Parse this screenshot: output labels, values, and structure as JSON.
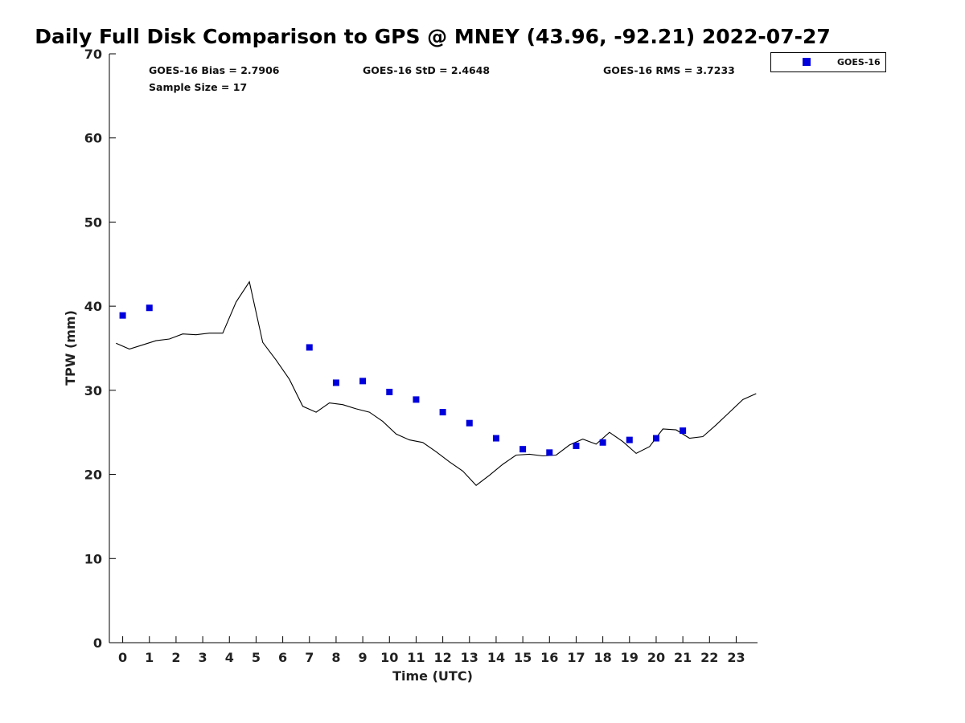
{
  "chart_data": {
    "type": "scatter",
    "title": "Daily Full Disk Comparison to GPS @ MNEY (43.96, -92.21) 2022-07-27",
    "xlabel": "Time (UTC)",
    "ylabel": "TPW (mm)",
    "xlim": [
      -0.5,
      23.8
    ],
    "ylim": [
      0,
      70
    ],
    "xticks": [
      0,
      1,
      2,
      3,
      4,
      5,
      6,
      7,
      8,
      9,
      10,
      11,
      12,
      13,
      14,
      15,
      16,
      17,
      18,
      19,
      20,
      21,
      22,
      23
    ],
    "yticks": [
      0,
      10,
      20,
      30,
      40,
      50,
      60,
      70
    ],
    "xtick_labels": [
      "0",
      "1",
      "2",
      "3",
      "4",
      "5",
      "6",
      "7",
      "8",
      "9",
      "10",
      "11",
      "12",
      "13",
      "14",
      "15",
      "16",
      "17",
      "18",
      "19",
      "20",
      "21",
      "22",
      "23"
    ],
    "ytick_labels": [
      "0",
      "10",
      "20",
      "30",
      "40",
      "50",
      "60",
      "70"
    ],
    "grid": false,
    "legend_position": "outside-top-right",
    "stats": [
      "GOES-16 Bias = 2.7906",
      "GOES-16 StD = 2.4648",
      "GOES-16 RMS = 3.7233",
      "Sample Size = 17"
    ],
    "series": [
      {
        "name": "GOES-16",
        "kind": "scatter",
        "marker": "square",
        "color": "#0000dd",
        "points": [
          [
            0,
            38.9
          ],
          [
            1,
            39.8
          ],
          [
            7,
            35.1
          ],
          [
            8,
            30.9
          ],
          [
            9,
            31.1
          ],
          [
            10,
            29.8
          ],
          [
            11,
            28.9
          ],
          [
            12,
            27.4
          ],
          [
            13,
            26.1
          ],
          [
            14,
            24.3
          ],
          [
            15,
            23.0
          ],
          [
            16,
            22.6
          ],
          [
            17,
            23.4
          ],
          [
            18,
            23.8
          ],
          [
            19,
            24.1
          ],
          [
            20,
            24.3
          ],
          [
            21,
            25.2
          ]
        ]
      },
      {
        "kind": "line",
        "color": "#000000",
        "points": [
          [
            -0.25,
            35.6
          ],
          [
            0.25,
            34.9
          ],
          [
            0.75,
            35.4
          ],
          [
            1.25,
            35.9
          ],
          [
            1.75,
            36.1
          ],
          [
            2.25,
            36.7
          ],
          [
            2.75,
            36.6
          ],
          [
            3.25,
            36.8
          ],
          [
            3.75,
            36.8
          ],
          [
            4.25,
            40.5
          ],
          [
            4.75,
            42.9
          ],
          [
            5.25,
            35.7
          ],
          [
            5.75,
            33.6
          ],
          [
            6.25,
            31.3
          ],
          [
            6.75,
            28.1
          ],
          [
            7.25,
            27.4
          ],
          [
            7.75,
            28.5
          ],
          [
            8.25,
            28.3
          ],
          [
            8.75,
            27.8
          ],
          [
            9.25,
            27.4
          ],
          [
            9.75,
            26.3
          ],
          [
            10.25,
            24.8
          ],
          [
            10.75,
            24.1
          ],
          [
            11.25,
            23.8
          ],
          [
            11.75,
            22.7
          ],
          [
            12.25,
            21.5
          ],
          [
            12.75,
            20.4
          ],
          [
            13.25,
            18.7
          ],
          [
            13.75,
            19.9
          ],
          [
            14.25,
            21.2
          ],
          [
            14.75,
            22.3
          ],
          [
            15.25,
            22.4
          ],
          [
            15.75,
            22.2
          ],
          [
            16.25,
            22.3
          ],
          [
            16.75,
            23.5
          ],
          [
            17.25,
            24.2
          ],
          [
            17.75,
            23.6
          ],
          [
            18.25,
            25.0
          ],
          [
            18.75,
            23.9
          ],
          [
            19.25,
            22.5
          ],
          [
            19.75,
            23.3
          ],
          [
            20.25,
            25.4
          ],
          [
            20.75,
            25.3
          ],
          [
            21.25,
            24.3
          ],
          [
            21.75,
            24.5
          ],
          [
            22.25,
            25.9
          ],
          [
            22.75,
            27.4
          ],
          [
            23.25,
            28.9
          ],
          [
            23.75,
            29.6
          ]
        ]
      }
    ]
  }
}
